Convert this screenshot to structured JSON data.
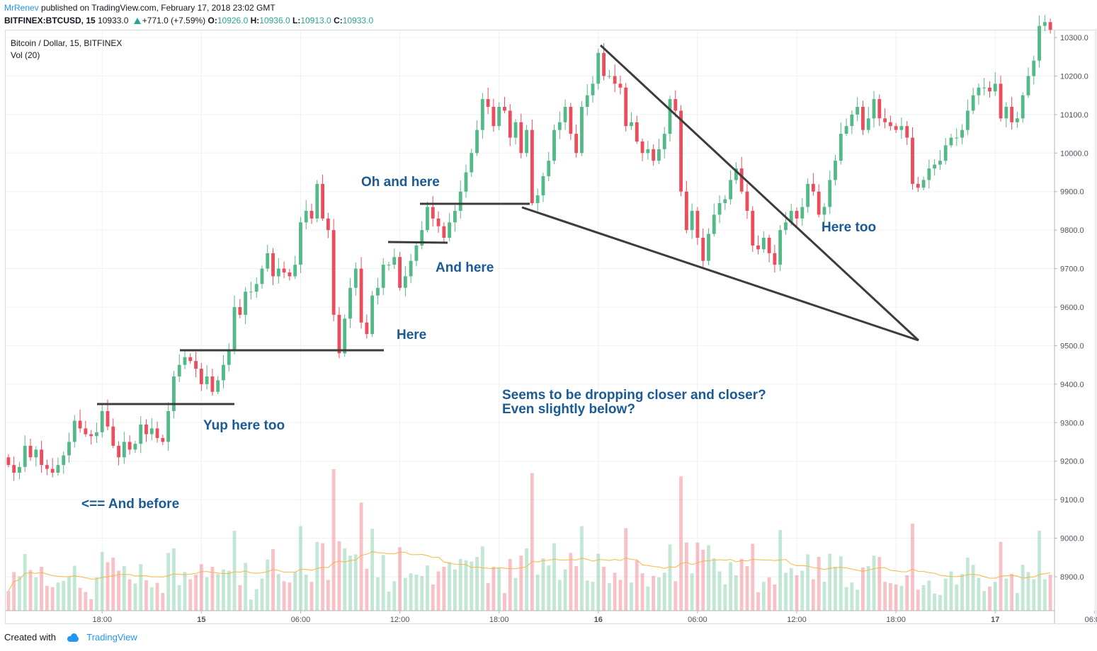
{
  "header": {
    "author": "MrRenev",
    "published": "published on TradingView.com, February 17, 2018 23:02 GMT",
    "symbol": "BITFINEX:BTCUSD, 15",
    "last": "10933.0",
    "change": "+771.0 (+7.59%)",
    "o_label": "O:",
    "o": "10926.0",
    "h_label": "H:",
    "h": "10936.0",
    "l_label": "L:",
    "l": "10913.0",
    "c_label": "C:",
    "c": "10933.0"
  },
  "footer": {
    "created_with": "Created with",
    "brand": "TradingView"
  },
  "colors": {
    "up": "#26a69a",
    "down": "#ef5350",
    "up_body": "#53b987",
    "down_body": "#eb4d5c",
    "annotation": "#1a5a96",
    "line": "#3c3c3c",
    "ma": "#f5b642"
  },
  "chart_data": {
    "type": "candlestick",
    "title": "Bitcoin / Dollar, 15, BITFINEX",
    "subtitle": "Vol (20)",
    "ylim": [
      8810,
      10330
    ],
    "y_ticks": [
      "10300.0",
      "10200.0",
      "10100.0",
      "10000.0",
      "9900.0",
      "9800.0",
      "9700.0",
      "9600.0",
      "9500.0",
      "9400.0",
      "9300.0",
      "9200.0",
      "9100.0",
      "9000.0",
      "8900.0"
    ],
    "x_ticks": [
      {
        "label": "18:00",
        "i": 17
      },
      {
        "label": "15",
        "i": 35
      },
      {
        "label": "06:00",
        "i": 53
      },
      {
        "label": "12:00",
        "i": 71
      },
      {
        "label": "18:00",
        "i": 89
      },
      {
        "label": "16",
        "i": 107
      },
      {
        "label": "06:00",
        "i": 125
      },
      {
        "label": "12:00",
        "i": 143
      },
      {
        "label": "18:00",
        "i": 161
      },
      {
        "label": "17",
        "i": 179
      },
      {
        "label": "06:00",
        "i": 197
      }
    ],
    "series_close": [
      9190,
      9170,
      9185,
      9240,
      9210,
      9230,
      9190,
      9180,
      9170,
      9190,
      9215,
      9250,
      9305,
      9285,
      9270,
      9265,
      9275,
      9330,
      9290,
      9240,
      9210,
      9250,
      9230,
      9245,
      9295,
      9270,
      9285,
      9260,
      9250,
      9330,
      9420,
      9450,
      9470,
      9460,
      9440,
      9400,
      9420,
      9380,
      9410,
      9450,
      9490,
      9600,
      9580,
      9640,
      9640,
      9660,
      9700,
      9740,
      9680,
      9700,
      9690,
      9680,
      9710,
      9820,
      9850,
      9830,
      9920,
      9830,
      9800,
      9580,
      9480,
      9570,
      9650,
      9700,
      9560,
      9530,
      9630,
      9650,
      9710,
      9710,
      9730,
      9650,
      9680,
      9720,
      9760,
      9800,
      9860,
      9830,
      9810,
      9780,
      9820,
      9850,
      9900,
      9950,
      10000,
      10060,
      10140,
      10120,
      10070,
      10120,
      10110,
      10040,
      10080,
      10000,
      10060,
      9870,
      9890,
      9940,
      9980,
      10060,
      10080,
      10120,
      10050,
      10000,
      10120,
      10150,
      10180,
      10260,
      10200,
      10200,
      10180,
      10170,
      10070,
      10080,
      10030,
      10000,
      10010,
      9980,
      10010,
      10050,
      10140,
      10110,
      9900,
      9800,
      9850,
      9780,
      9720,
      9790,
      9840,
      9870,
      9880,
      9930,
      9960,
      9900,
      9850,
      9760,
      9750,
      9780,
      9740,
      9710,
      9800,
      9820,
      9850,
      9830,
      9860,
      9920,
      9900,
      9840,
      9860,
      9930,
      9980,
      10050,
      10070,
      10100,
      10120,
      10060,
      10090,
      10140,
      10090,
      10080,
      10070,
      10060,
      10070,
      10040,
      9920,
      9910,
      9930,
      9960,
      9970,
      9980,
      10020,
      10040,
      10040,
      10060,
      10110,
      10150,
      10170,
      10170,
      10160,
      10180,
      10090,
      10120,
      10080,
      10090,
      10150,
      10200,
      10240,
      10330,
      10340,
      10320
    ]
  },
  "annotations": {
    "and_before": "<== And before",
    "yup_here_too": "Yup here too",
    "here": "Here",
    "and_here": "And here",
    "oh_and_here": "Oh and here",
    "here_too": "Here too",
    "dropping_1": "Seems to be dropping closer and closer?",
    "dropping_2": "Even slightly below?"
  }
}
